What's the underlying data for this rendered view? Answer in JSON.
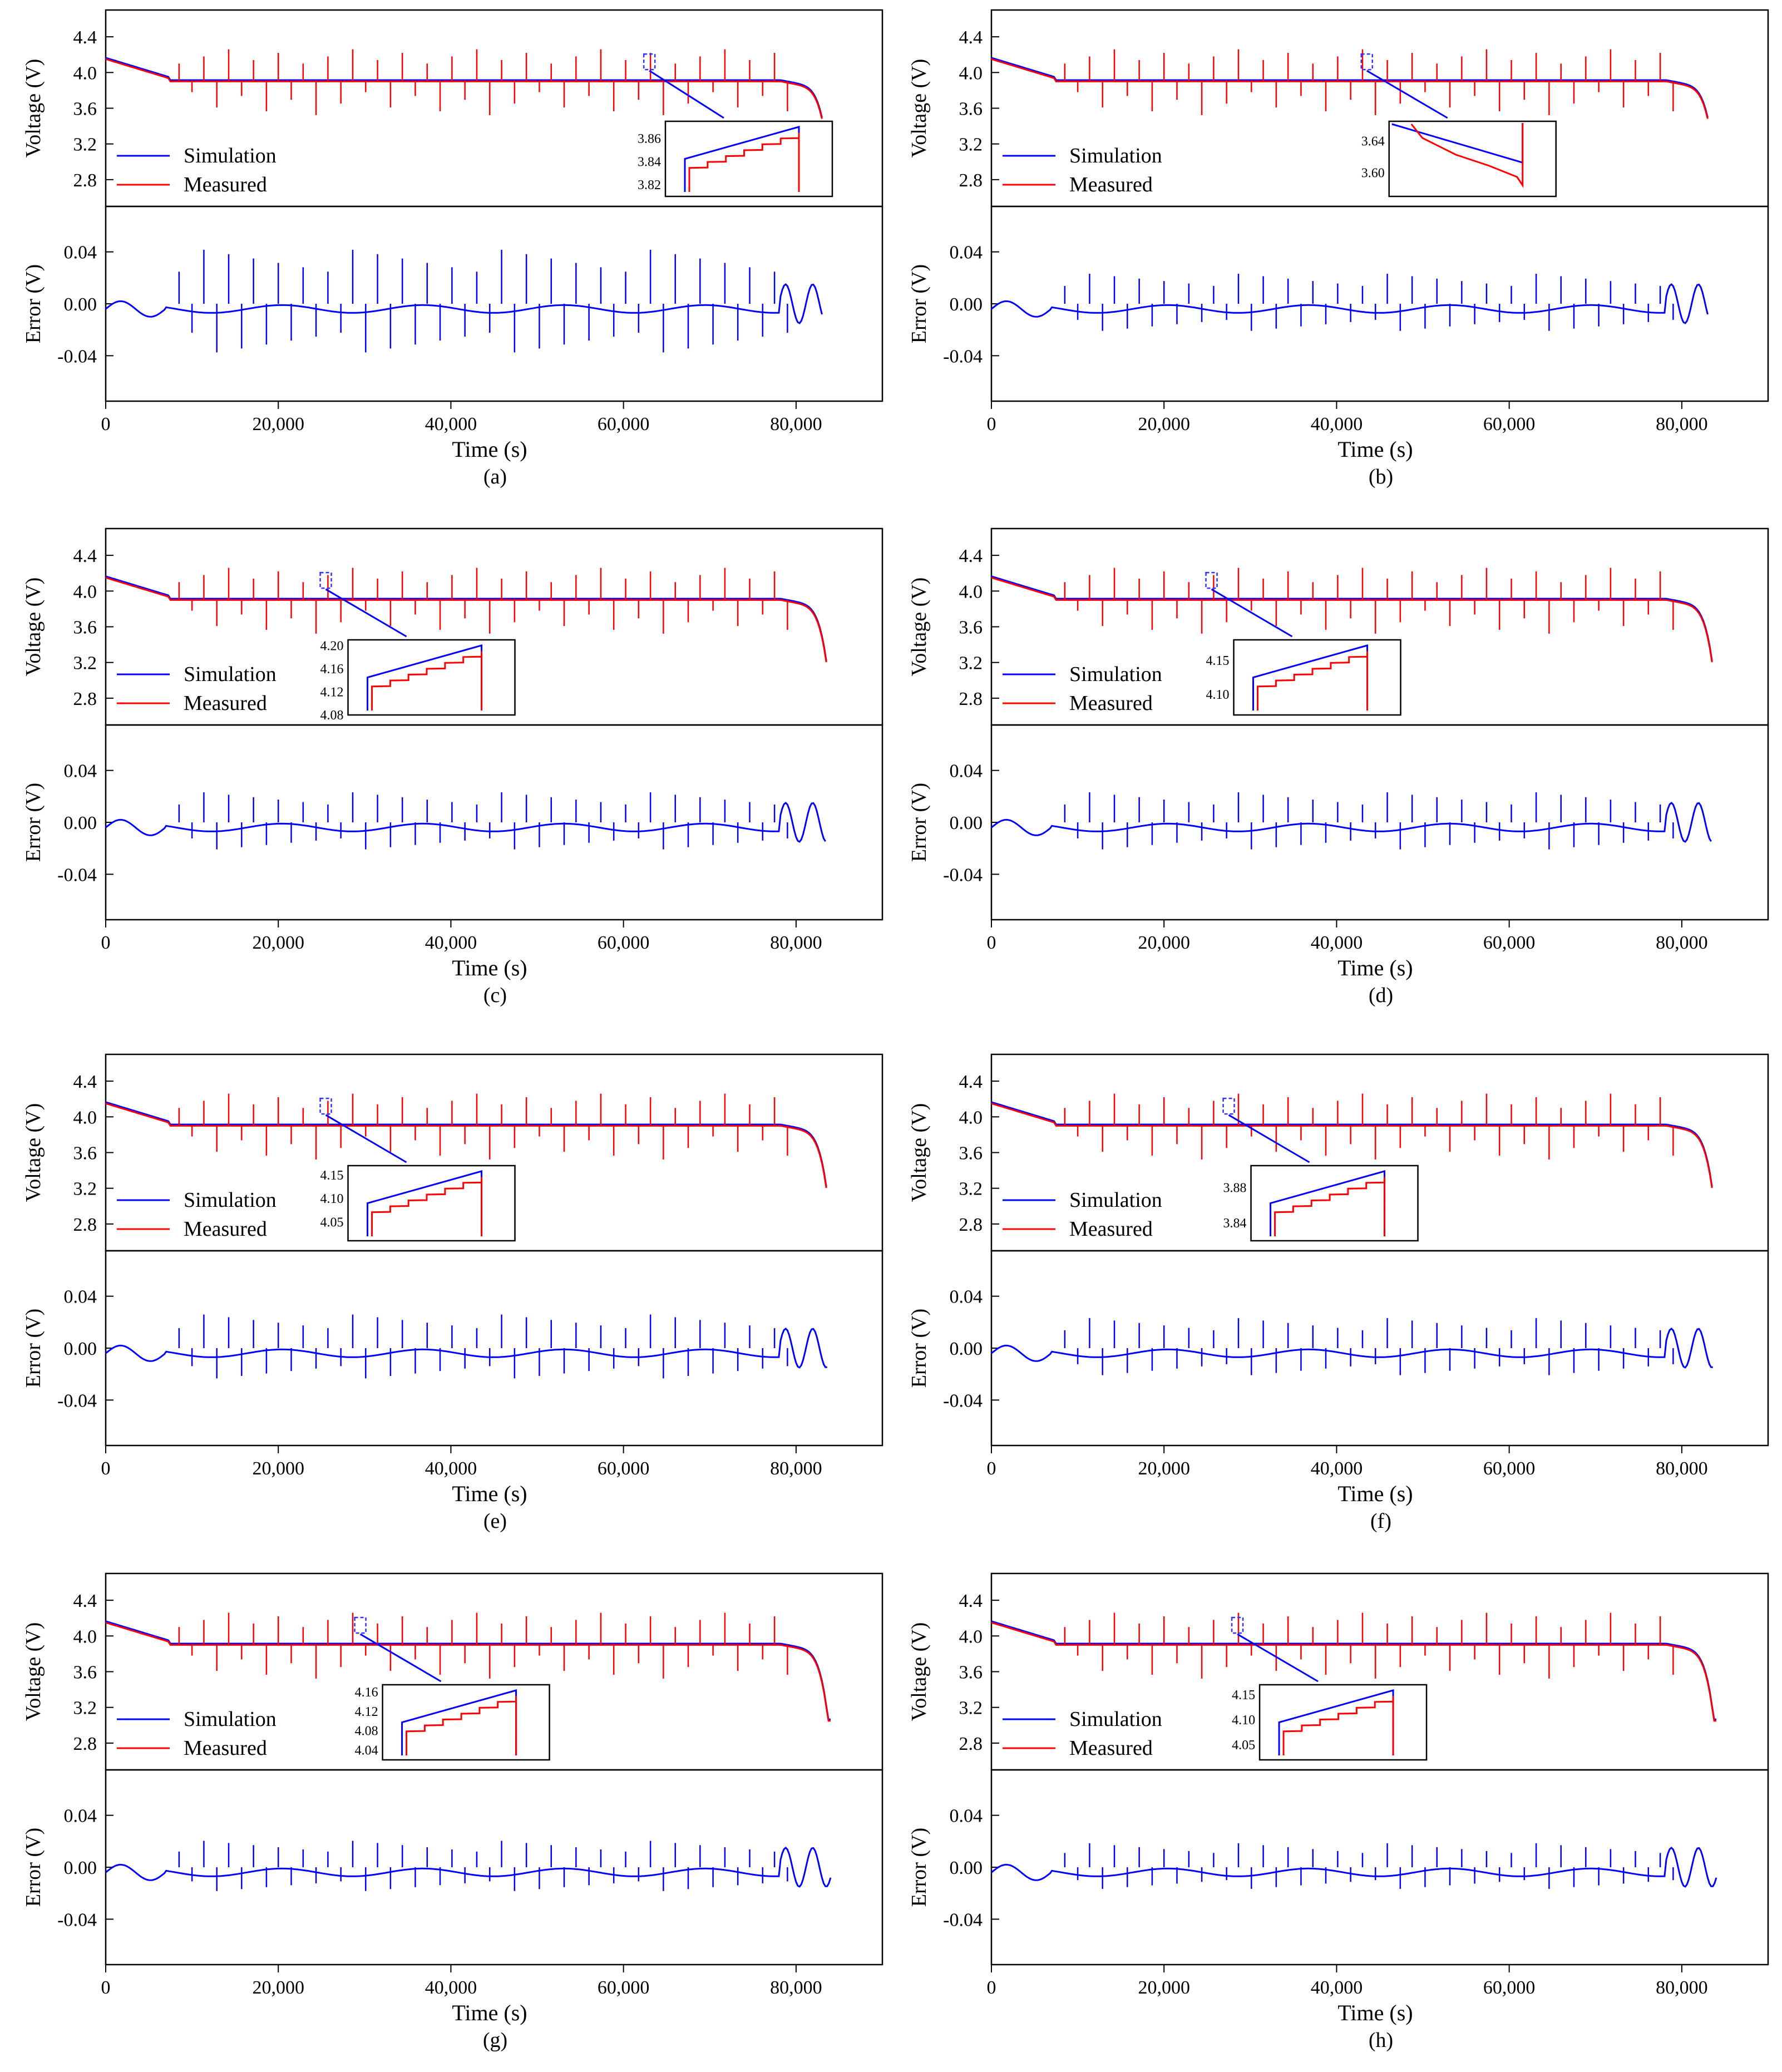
{
  "figure": {
    "colors": {
      "simulation": "#0000ff",
      "measured": "#ff0000",
      "axis": "#000000",
      "box": "#3333ff"
    },
    "axis_labels": {
      "voltage": "Voltage (V)",
      "error": "Error (V)",
      "time": "Time (s)"
    },
    "x_ticks": [
      "0",
      "20,000",
      "40,000",
      "60,000",
      "80,000"
    ],
    "voltage_ticks": [
      "4.4",
      "4.0",
      "3.6",
      "3.2",
      "2.8"
    ],
    "error_ticks": [
      "0.04",
      "0.00",
      "-0.04"
    ],
    "legend": {
      "simulation": "Simulation",
      "measured": "Measured"
    }
  },
  "chart_data": [
    {
      "panel": "(a)",
      "type": "line",
      "title": "",
      "xlabel": "Time (s)",
      "ylabel_top": "Voltage (V)",
      "ylabel_bottom": "Error (V)",
      "xlim": [
        0,
        90000
      ],
      "ylim_voltage": [
        2.5,
        4.7
      ],
      "ylim_error": [
        -0.075,
        0.075
      ],
      "end_time": 83000,
      "pulse_count": 25,
      "error_amplitude": 0.045,
      "series": [
        {
          "name": "Simulation",
          "color": "#0000ff"
        },
        {
          "name": "Measured",
          "color": "#ff0000"
        },
        {
          "name": "Error",
          "color": "#0000ff"
        }
      ],
      "inset": {
        "ticks": [
          "3.86",
          "3.84",
          "3.82"
        ],
        "ylim": [
          3.81,
          3.875
        ],
        "zoom_time": 63000,
        "shape": "step"
      }
    },
    {
      "panel": "(b)",
      "type": "line",
      "title": "",
      "xlabel": "Time (s)",
      "ylabel_top": "Voltage (V)",
      "ylabel_bottom": "Error (V)",
      "xlim": [
        0,
        90000
      ],
      "ylim_voltage": [
        2.5,
        4.7
      ],
      "ylim_error": [
        -0.075,
        0.075
      ],
      "end_time": 83000,
      "pulse_count": 25,
      "error_amplitude": 0.025,
      "series": [
        {
          "name": "Simulation",
          "color": "#0000ff"
        },
        {
          "name": "Measured",
          "color": "#ff0000"
        },
        {
          "name": "Error",
          "color": "#0000ff"
        }
      ],
      "inset": {
        "ticks": [
          "3.64",
          "3.60"
        ],
        "ylim": [
          3.57,
          3.665
        ],
        "zoom_time": 43500,
        "shape": "decline"
      }
    },
    {
      "panel": "(c)",
      "type": "line",
      "title": "",
      "xlabel": "Time (s)",
      "ylabel_top": "Voltage (V)",
      "ylabel_bottom": "Error (V)",
      "xlim": [
        0,
        90000
      ],
      "ylim_voltage": [
        2.5,
        4.7
      ],
      "ylim_error": [
        -0.075,
        0.075
      ],
      "end_time": 83500,
      "pulse_count": 25,
      "error_amplitude": 0.025,
      "series": [
        {
          "name": "Simulation",
          "color": "#0000ff"
        },
        {
          "name": "Measured",
          "color": "#ff0000"
        },
        {
          "name": "Error",
          "color": "#0000ff"
        }
      ],
      "inset": {
        "ticks": [
          "4.20",
          "4.16",
          "4.12",
          "4.08"
        ],
        "ylim": [
          4.08,
          4.21
        ],
        "zoom_time": 25500,
        "shape": "rise"
      }
    },
    {
      "panel": "(d)",
      "type": "line",
      "title": "",
      "xlabel": "Time (s)",
      "ylabel_top": "Voltage (V)",
      "ylabel_bottom": "Error (V)",
      "xlim": [
        0,
        90000
      ],
      "ylim_voltage": [
        2.5,
        4.7
      ],
      "ylim_error": [
        -0.075,
        0.075
      ],
      "end_time": 83500,
      "pulse_count": 25,
      "error_amplitude": 0.025,
      "series": [
        {
          "name": "Simulation",
          "color": "#0000ff"
        },
        {
          "name": "Measured",
          "color": "#ff0000"
        },
        {
          "name": "Error",
          "color": "#0000ff"
        }
      ],
      "inset": {
        "ticks": [
          "4.15",
          "4.10"
        ],
        "ylim": [
          4.07,
          4.18
        ],
        "zoom_time": 25500,
        "shape": "rise"
      }
    },
    {
      "panel": "(e)",
      "type": "line",
      "title": "",
      "xlabel": "Time (s)",
      "ylabel_top": "Voltage (V)",
      "ylabel_bottom": "Error (V)",
      "xlim": [
        0,
        90000
      ],
      "ylim_voltage": [
        2.5,
        4.7
      ],
      "ylim_error": [
        -0.075,
        0.075
      ],
      "end_time": 83700,
      "pulse_count": 25,
      "error_amplitude": 0.028,
      "series": [
        {
          "name": "Simulation",
          "color": "#0000ff"
        },
        {
          "name": "Measured",
          "color": "#ff0000"
        },
        {
          "name": "Error",
          "color": "#0000ff"
        }
      ],
      "inset": {
        "ticks": [
          "4.15",
          "4.10",
          "4.05"
        ],
        "ylim": [
          4.01,
          4.17
        ],
        "zoom_time": 25500,
        "shape": "rise"
      }
    },
    {
      "panel": "(f)",
      "type": "line",
      "title": "",
      "xlabel": "Time (s)",
      "ylabel_top": "Voltage (V)",
      "ylabel_bottom": "Error (V)",
      "xlim": [
        0,
        90000
      ],
      "ylim_voltage": [
        2.5,
        4.7
      ],
      "ylim_error": [
        -0.075,
        0.075
      ],
      "end_time": 83700,
      "pulse_count": 25,
      "error_amplitude": 0.025,
      "series": [
        {
          "name": "Simulation",
          "color": "#0000ff"
        },
        {
          "name": "Measured",
          "color": "#ff0000"
        },
        {
          "name": "Error",
          "color": "#0000ff"
        }
      ],
      "inset": {
        "ticks": [
          "3.88",
          "3.84"
        ],
        "ylim": [
          3.82,
          3.905
        ],
        "zoom_time": 27500,
        "shape": "step"
      }
    },
    {
      "panel": "(g)",
      "type": "line",
      "title": "",
      "xlabel": "Time (s)",
      "ylabel_top": "Voltage (V)",
      "ylabel_bottom": "Error (V)",
      "xlim": [
        0,
        90000
      ],
      "ylim_voltage": [
        2.5,
        4.7
      ],
      "ylim_error": [
        -0.075,
        0.075
      ],
      "end_time": 84000,
      "pulse_count": 25,
      "error_amplitude": 0.022,
      "series": [
        {
          "name": "Simulation",
          "color": "#0000ff"
        },
        {
          "name": "Measured",
          "color": "#ff0000"
        },
        {
          "name": "Error",
          "color": "#0000ff"
        }
      ],
      "inset": {
        "ticks": [
          "4.16",
          "4.12",
          "4.08",
          "4.04"
        ],
        "ylim": [
          4.02,
          4.175
        ],
        "zoom_time": 29500,
        "shape": "rise"
      }
    },
    {
      "panel": "(h)",
      "type": "line",
      "title": "",
      "xlabel": "Time (s)",
      "ylabel_top": "Voltage (V)",
      "ylabel_bottom": "Error (V)",
      "xlim": [
        0,
        90000
      ],
      "ylim_voltage": [
        2.5,
        4.7
      ],
      "ylim_error": [
        -0.075,
        0.075
      ],
      "end_time": 84000,
      "pulse_count": 25,
      "error_amplitude": 0.02,
      "series": [
        {
          "name": "Simulation",
          "color": "#0000ff"
        },
        {
          "name": "Measured",
          "color": "#ff0000"
        },
        {
          "name": "Error",
          "color": "#0000ff"
        }
      ],
      "inset": {
        "ticks": [
          "4.15",
          "4.10",
          "4.05"
        ],
        "ylim": [
          4.02,
          4.17
        ],
        "zoom_time": 28500,
        "shape": "rise"
      }
    }
  ]
}
